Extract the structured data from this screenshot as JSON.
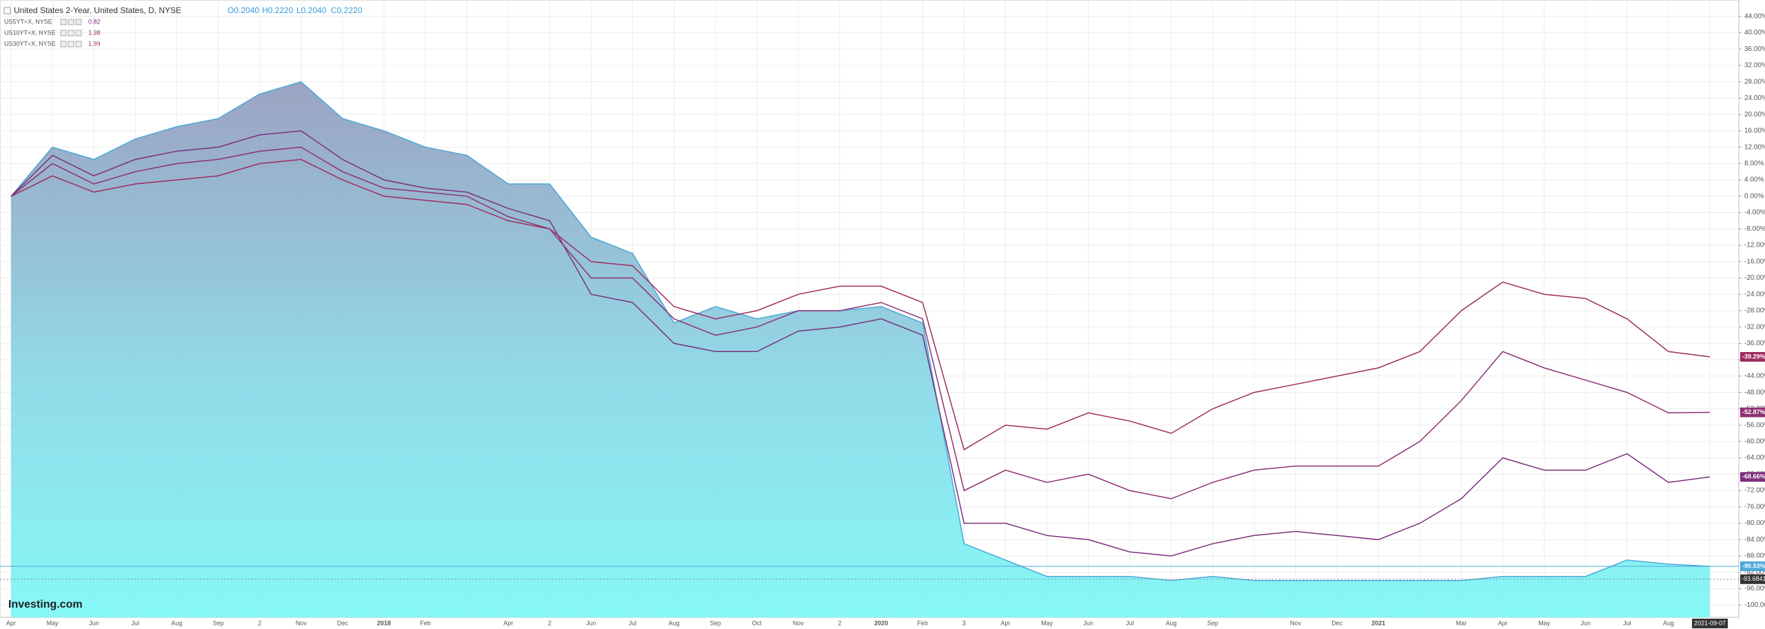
{
  "chart_data": {
    "type": "line",
    "title": "United States 2-Year, United States, D, NYSE",
    "ohlc": [
      "O0.2040",
      "H0.2220",
      "L0.2040",
      "C0.2220"
    ],
    "watermark": "Investing.com",
    "categories": [
      "Apr",
      "May",
      "Jun",
      "Jul",
      "Aug",
      "Sep",
      "2",
      "Nov",
      "Dec",
      "2018",
      "Feb",
      null,
      "Apr",
      "2",
      "Jun",
      "Jul",
      "Aug",
      "Sep",
      "Oct",
      "Nov",
      "2",
      "2020",
      "Feb",
      "3",
      "Apr",
      "May",
      "Jun",
      "Jul",
      "Aug",
      "Sep",
      null,
      "Nov",
      "Dec",
      "2021",
      null,
      "Mar",
      "Apr",
      "May",
      "Jun",
      "Jul",
      "Aug",
      "2021-09-07"
    ],
    "series": [
      {
        "name": "United States 2-Year",
        "style": "area",
        "color": "#4aa8d8",
        "values": [
          0,
          12,
          9,
          14,
          17,
          19,
          25,
          28,
          19,
          16,
          12,
          10,
          3,
          3,
          -10,
          -14,
          -31,
          -27,
          -30,
          -28,
          -28,
          -27,
          -31,
          -85,
          -89,
          -93,
          -93,
          -93,
          -94,
          -93,
          -94,
          -94,
          -94,
          -94,
          -94,
          -94,
          -93,
          -93,
          -93,
          -89,
          -90,
          -90.53
        ],
        "value_labels": [
          null,
          null,
          null,
          null,
          null,
          null,
          null,
          null,
          null,
          null,
          null,
          null,
          null,
          null,
          null,
          null,
          null,
          null,
          null,
          null,
          null,
          null,
          null,
          null,
          null,
          null,
          null,
          null,
          null,
          null,
          null,
          null,
          null,
          null,
          null,
          null,
          null,
          null,
          null,
          null,
          null,
          "-90.53%"
        ]
      },
      {
        "name": "US5YT=X, NYSE",
        "legend_value": "0.82",
        "style": "line",
        "color": "#7b2f7e",
        "values": [
          0,
          10,
          5,
          9,
          11,
          12,
          15,
          16,
          9,
          4,
          2,
          1,
          -3,
          -6,
          -24,
          -26,
          -36,
          -38,
          -38,
          -33,
          -32,
          -30,
          -34,
          -80,
          -80,
          -83,
          -84,
          -87,
          -88,
          -85,
          -83,
          -82,
          -83,
          -84,
          -80,
          -74,
          -64,
          -67,
          -67,
          -63,
          -70,
          -68.66
        ],
        "value_labels": [
          null,
          null,
          null,
          null,
          null,
          null,
          null,
          null,
          null,
          null,
          null,
          null,
          null,
          null,
          null,
          null,
          null,
          null,
          null,
          null,
          null,
          null,
          null,
          null,
          null,
          null,
          null,
          null,
          null,
          null,
          null,
          null,
          null,
          null,
          null,
          null,
          null,
          null,
          null,
          null,
          null,
          "-68.66%"
        ]
      },
      {
        "name": "US10YT=X, NYSE",
        "legend_value": "1.38",
        "style": "line",
        "color": "#8e2f73",
        "values": [
          0,
          8,
          3,
          6,
          8,
          9,
          11,
          12,
          6,
          2,
          1,
          0,
          -5,
          -8,
          -20,
          -20,
          -30,
          -34,
          -32,
          -28,
          -28,
          -26,
          -30,
          -72,
          -67,
          -70,
          -68,
          -72,
          -74,
          -70,
          -67,
          -66,
          -66,
          -66,
          -60,
          -50,
          -38,
          -42,
          -45,
          -48,
          -53,
          -52.87
        ],
        "value_labels": [
          null,
          null,
          null,
          null,
          null,
          null,
          null,
          null,
          null,
          null,
          null,
          null,
          null,
          null,
          null,
          null,
          null,
          null,
          null,
          null,
          null,
          null,
          null,
          null,
          null,
          null,
          null,
          null,
          null,
          null,
          null,
          null,
          null,
          null,
          null,
          null,
          null,
          null,
          null,
          null,
          null,
          "-52.87%"
        ]
      },
      {
        "name": "US30YT=X, NYSE",
        "legend_value": "1.99",
        "style": "line",
        "color": "#9e2b5e",
        "values": [
          0,
          5,
          1,
          3,
          4,
          5,
          8,
          9,
          4,
          0,
          -1,
          -2,
          -6,
          -8,
          -16,
          -17,
          -27,
          -30,
          -28,
          -24,
          -22,
          -22,
          -26,
          -62,
          -56,
          -57,
          -53,
          -55,
          -58,
          -52,
          -48,
          -46,
          -44,
          -42,
          -38,
          -28,
          -21,
          -24,
          -25,
          -30,
          -38,
          -39.29
        ],
        "value_labels": [
          null,
          null,
          null,
          null,
          null,
          null,
          null,
          null,
          null,
          null,
          null,
          null,
          null,
          null,
          null,
          null,
          null,
          null,
          null,
          null,
          null,
          null,
          null,
          null,
          null,
          null,
          null,
          null,
          null,
          null,
          null,
          null,
          null,
          null,
          null,
          null,
          null,
          null,
          null,
          null,
          null,
          "-39.29%"
        ]
      }
    ],
    "crosshair": -93.6841,
    "ylim": [
      -103,
      48
    ],
    "yticks": [
      {
        "value": 44,
        "label": "44.00%"
      },
      {
        "value": 40,
        "label": "40.00%"
      },
      {
        "value": 36,
        "label": "36.00%"
      },
      {
        "value": 32,
        "label": "32.00%"
      },
      {
        "value": 28,
        "label": "28.00%"
      },
      {
        "value": 24,
        "label": "24.00%"
      },
      {
        "value": 20,
        "label": "20.00%"
      },
      {
        "value": 16,
        "label": "16.00%"
      },
      {
        "value": 12,
        "label": "12.00%"
      },
      {
        "value": 8,
        "label": "8.00%"
      },
      {
        "value": 4,
        "label": "4.00%"
      },
      {
        "value": 0,
        "label": "0.00%"
      },
      {
        "value": -4,
        "label": "-4.00%"
      },
      {
        "value": -8,
        "label": "-8.00%"
      },
      {
        "value": -12,
        "label": "-12.00%"
      },
      {
        "value": -16,
        "label": "-16.00%"
      },
      {
        "value": -20,
        "label": "-20.00%"
      },
      {
        "value": -24,
        "label": "-24.00%"
      },
      {
        "value": -28,
        "label": "-28.00%"
      },
      {
        "value": -32,
        "label": "-32.00%"
      },
      {
        "value": -36,
        "label": "-36.00%"
      },
      {
        "value": -40,
        "label": "-40.00%"
      },
      {
        "value": -44,
        "label": "-44.00%"
      },
      {
        "value": -48,
        "label": "-48.00%"
      },
      {
        "value": -52,
        "label": "-52.00%"
      },
      {
        "value": -56,
        "label": "-56.00%"
      },
      {
        "value": -60,
        "label": "-60.00%"
      },
      {
        "value": -64,
        "label": "-64.00%"
      },
      {
        "value": -68,
        "label": "-68.00%"
      },
      {
        "value": -72,
        "label": "-72.00%"
      },
      {
        "value": -76,
        "label": "-76.00%"
      },
      {
        "value": -80,
        "label": "-80.00%"
      },
      {
        "value": -84,
        "label": "-84.00%"
      },
      {
        "value": -88,
        "label": "-88.00%"
      },
      {
        "value": -92,
        "label": "-92.00%"
      },
      {
        "value": -96,
        "label": "-96.00%"
      },
      {
        "value": -100,
        "label": "-100.00%"
      }
    ],
    "grid": true
  }
}
